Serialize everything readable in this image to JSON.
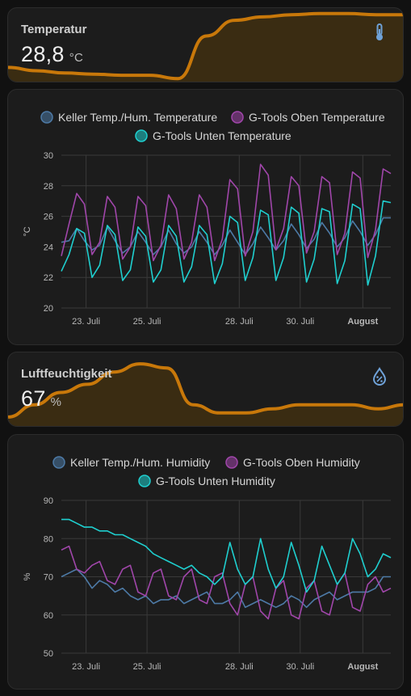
{
  "colors": {
    "background": "#111111",
    "card": "#1c1c1c",
    "accent_line": "#c8780a",
    "accent_fill": "#3a2c12",
    "series_keller": "#4d7aa6",
    "series_oben": "#a046aa",
    "series_unten": "#1fcfcf",
    "icon": "#6fa2d8"
  },
  "temperature_card": {
    "name": "Temperatur",
    "value": "28,8",
    "unit": "°C",
    "icon": "thermometer-icon"
  },
  "humidity_card": {
    "name": "Luftfeuchtigkeit",
    "value": "67",
    "unit": "%",
    "icon": "water-percent-icon"
  },
  "chart_data": [
    {
      "type": "line",
      "ylabel": "°C",
      "ylim": [
        20,
        30
      ],
      "yticks": [
        "20",
        "22",
        "24",
        "26",
        "28",
        "30"
      ],
      "xticks": [
        "23. Juli",
        "25. Juli",
        "28. Juli",
        "30. Juli",
        "August"
      ],
      "legend_position": "top",
      "grid": true,
      "series": [
        {
          "name": "Keller Temp./Hum. Temperature",
          "values": [
            24.3,
            24.4,
            25.2,
            24.4,
            23.8,
            24.1,
            25.3,
            24.4,
            23.6,
            24.0,
            25.0,
            24.3,
            23.5,
            24.0,
            25.1,
            24.2,
            23.6,
            24.0,
            25.0,
            24.3,
            23.5,
            24.1,
            25.1,
            24.3,
            23.5,
            24.2,
            25.3,
            24.6,
            23.8,
            24.4,
            25.5,
            24.8,
            23.9,
            24.5,
            25.6,
            24.9,
            24.0,
            24.6,
            25.7,
            25.0,
            24.1,
            24.8,
            25.9,
            25.9
          ]
        },
        {
          "name": "G-Tools Oben Temperature",
          "values": [
            23.4,
            25.5,
            27.5,
            26.8,
            23.5,
            24.3,
            27.3,
            26.6,
            23.2,
            24.0,
            27.3,
            26.7,
            23.1,
            24.1,
            27.4,
            26.5,
            23.2,
            24.3,
            27.4,
            26.6,
            23.1,
            24.5,
            28.4,
            27.8,
            23.4,
            25.0,
            29.4,
            28.7,
            23.8,
            25.2,
            28.6,
            28.0,
            23.6,
            25.0,
            28.6,
            28.2,
            23.5,
            24.9,
            28.9,
            28.5,
            23.3,
            25.1,
            29.1,
            28.8
          ]
        },
        {
          "name": "G-Tools Unten Temperature",
          "values": [
            22.4,
            23.5,
            25.2,
            24.9,
            22.0,
            22.8,
            25.4,
            24.8,
            21.8,
            22.5,
            25.3,
            24.7,
            21.7,
            22.5,
            25.4,
            24.7,
            21.7,
            22.7,
            25.4,
            24.8,
            21.6,
            22.9,
            26.0,
            25.6,
            21.8,
            23.3,
            26.4,
            26.1,
            21.8,
            23.3,
            26.6,
            26.2,
            21.7,
            23.2,
            26.5,
            26.3,
            21.6,
            23.1,
            26.8,
            26.5,
            21.5,
            23.4,
            27.0,
            26.9
          ]
        }
      ]
    },
    {
      "type": "line",
      "ylabel": "%",
      "ylim": [
        50,
        90
      ],
      "yticks": [
        "50",
        "60",
        "70",
        "80",
        "90"
      ],
      "xticks": [
        "23. Juli",
        "25. Juli",
        "28. Juli",
        "30. Juli",
        "August"
      ],
      "legend_position": "top",
      "grid": true,
      "series": [
        {
          "name": "Keller Temp./Hum. Humidity",
          "values": [
            70,
            71,
            72,
            70,
            67,
            69,
            68,
            66,
            67,
            65,
            64,
            65,
            63,
            64,
            64,
            65,
            63,
            64,
            65,
            66,
            63,
            63,
            64,
            66,
            62,
            63,
            64,
            63,
            62,
            63,
            65,
            64,
            62,
            64,
            65,
            66,
            64,
            65,
            66,
            66,
            66,
            67,
            70,
            70
          ]
        },
        {
          "name": "G-Tools Oben Humidity",
          "values": [
            77,
            78,
            72,
            71,
            73,
            74,
            69,
            68,
            72,
            73,
            66,
            65,
            71,
            72,
            65,
            64,
            70,
            72,
            64,
            63,
            70,
            71,
            63,
            60,
            68,
            70,
            61,
            59,
            67,
            69,
            60,
            59,
            67,
            69,
            61,
            60,
            68,
            71,
            62,
            61,
            68,
            70,
            66,
            67
          ]
        },
        {
          "name": "G-Tools Unten Humidity",
          "values": [
            85,
            85,
            84,
            83,
            83,
            82,
            82,
            81,
            81,
            80,
            79,
            78,
            76,
            75,
            74,
            73,
            72,
            73,
            71,
            70,
            68,
            70,
            79,
            72,
            68,
            70,
            80,
            72,
            67,
            70,
            79,
            73,
            66,
            69,
            78,
            73,
            68,
            71,
            80,
            76,
            70,
            72,
            76,
            75
          ]
        }
      ]
    }
  ]
}
